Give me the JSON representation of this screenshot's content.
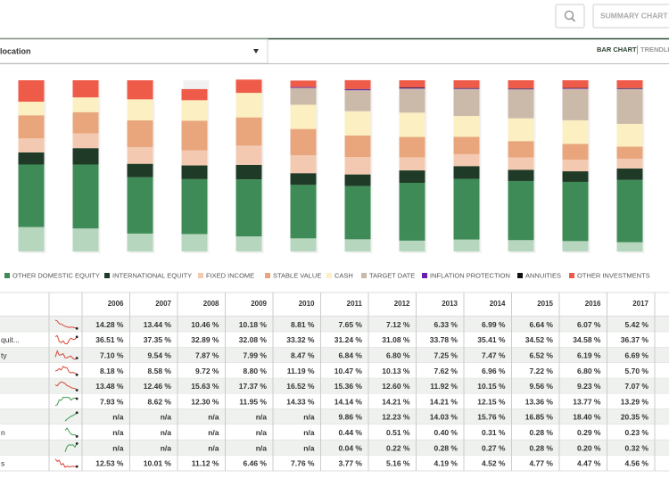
{
  "header": {
    "view_selector": "location",
    "views": [
      "BAR CHART",
      "TRENDLI"
    ],
    "summary_button": "SUMMARY CHART"
  },
  "chart_data": {
    "type": "stacked_bar",
    "categories": [
      "2006",
      "2007",
      "2008",
      "2009",
      "2010",
      "2011",
      "2012",
      "2013",
      "2014",
      "2015",
      "2016",
      "2017"
    ],
    "ylim": [
      0,
      100
    ],
    "series": [
      {
        "name": null,
        "row_label": null,
        "color": "#b6d6bd",
        "spark_color": "#d9463a",
        "values": [
          14.28,
          13.44,
          10.46,
          10.18,
          8.81,
          7.65,
          7.12,
          6.33,
          6.99,
          6.64,
          6.07,
          5.42
        ],
        "value_labels": [
          "14.28 %",
          "13.44 %",
          "10.46 %",
          "10.18 %",
          "8.81 %",
          "7.65 %",
          "7.12 %",
          "6.33 %",
          "6.99 %",
          "6.64 %",
          "6.07 %",
          "5.42 %"
        ]
      },
      {
        "name": "OTHER DOMESTIC EQUITY",
        "row_label": "quit...",
        "color": "#3f8b57",
        "spark_color": "#d9463a",
        "values": [
          36.51,
          37.35,
          32.89,
          32.08,
          33.32,
          31.24,
          31.08,
          33.78,
          35.41,
          34.52,
          34.58,
          36.37
        ],
        "value_labels": [
          "36.51 %",
          "37.35 %",
          "32.89 %",
          "32.08 %",
          "33.32 %",
          "31.24 %",
          "31.08 %",
          "33.78 %",
          "35.41 %",
          "34.52 %",
          "34.58 %",
          "36.37 %"
        ]
      },
      {
        "name": "INTERNATIONAL EQUITY",
        "row_label": "ty",
        "color": "#1f3b27",
        "spark_color": "#d9463a",
        "values": [
          7.1,
          9.54,
          7.87,
          7.99,
          8.47,
          6.84,
          6.8,
          7.25,
          7.47,
          6.52,
          6.19,
          6.69
        ],
        "value_labels": [
          "7.10 %",
          "9.54 %",
          "7.87 %",
          "7.99 %",
          "8.47 %",
          "6.84 %",
          "6.80 %",
          "7.25 %",
          "7.47 %",
          "6.52 %",
          "6.19 %",
          "6.69 %"
        ]
      },
      {
        "name": "FIXED INCOME",
        "row_label": null,
        "color": "#f3cab1",
        "spark_color": "#d9463a",
        "values": [
          8.18,
          8.58,
          9.72,
          8.8,
          11.19,
          10.47,
          10.13,
          7.62,
          6.96,
          7.22,
          6.8,
          5.7
        ],
        "value_labels": [
          "8.18 %",
          "8.58 %",
          "9.72 %",
          "8.80 %",
          "11.19 %",
          "10.47 %",
          "10.13 %",
          "7.62 %",
          "6.96 %",
          "7.22 %",
          "6.80 %",
          "5.70 %"
        ]
      },
      {
        "name": "STABLE VALUE",
        "row_label": null,
        "color": "#e9a67c",
        "spark_color": "#d9463a",
        "values": [
          13.48,
          12.46,
          15.63,
          17.37,
          16.52,
          15.36,
          12.6,
          11.92,
          10.15,
          9.56,
          9.23,
          7.07
        ],
        "value_labels": [
          "13.48 %",
          "12.46 %",
          "15.63 %",
          "17.37 %",
          "16.52 %",
          "15.36 %",
          "12.60 %",
          "11.92 %",
          "10.15 %",
          "9.56 %",
          "9.23 %",
          "7.07 %"
        ]
      },
      {
        "name": "CASH",
        "row_label": null,
        "color": "#fcefc1",
        "spark_color": "#3f9b4f",
        "values": [
          7.93,
          8.62,
          12.3,
          11.95,
          14.33,
          14.14,
          14.21,
          14.21,
          12.15,
          13.36,
          13.77,
          13.29
        ],
        "value_labels": [
          "7.93 %",
          "8.62 %",
          "12.30 %",
          "11.95 %",
          "14.33 %",
          "14.14 %",
          "14.21 %",
          "14.21 %",
          "12.15 %",
          "13.36 %",
          "13.77 %",
          "13.29 %"
        ]
      },
      {
        "name": "TARGET DATE",
        "row_label": null,
        "color": "#cbb9aa",
        "spark_color": "#3f9b4f",
        "values": [
          null,
          null,
          null,
          null,
          null,
          9.86,
          12.23,
          14.03,
          15.76,
          16.85,
          18.4,
          20.35
        ],
        "value_labels": [
          "n/a",
          "n/a",
          "n/a",
          "n/a",
          "n/a",
          "9.86 %",
          "12.23 %",
          "14.03 %",
          "15.76 %",
          "16.85 %",
          "18.40 %",
          "20.35 %"
        ]
      },
      {
        "name": "INFLATION PROTECTION",
        "row_label": "n",
        "color": "#6a1fb0",
        "spark_color": "#3f9b4f",
        "values": [
          null,
          null,
          null,
          null,
          null,
          0.44,
          0.51,
          0.4,
          0.31,
          0.28,
          0.29,
          0.23
        ],
        "value_labels": [
          "n/a",
          "n/a",
          "n/a",
          "n/a",
          "n/a",
          "0.44 %",
          "0.51 %",
          "0.40 %",
          "0.31 %",
          "0.28 %",
          "0.29 %",
          "0.23 %"
        ]
      },
      {
        "name": "ANNUITIES",
        "row_label": null,
        "color": "#111111",
        "spark_color": "#3f9b4f",
        "values": [
          null,
          null,
          null,
          null,
          null,
          0.04,
          0.22,
          0.28,
          0.27,
          0.28,
          0.2,
          0.32
        ],
        "value_labels": [
          "n/a",
          "n/a",
          "n/a",
          "n/a",
          "n/a",
          "0.04 %",
          "0.22 %",
          "0.28 %",
          "0.27 %",
          "0.28 %",
          "0.20 %",
          "0.32 %"
        ]
      },
      {
        "name": "OTHER INVESTMENTS",
        "row_label": "s",
        "color": "#ee5b49",
        "spark_color": "#d9463a",
        "values": [
          12.53,
          10.01,
          11.12,
          6.46,
          7.76,
          3.77,
          5.16,
          4.19,
          4.52,
          4.77,
          4.47,
          4.56
        ],
        "value_labels": [
          "12.53 %",
          "10.01 %",
          "11.12 %",
          "6.46 %",
          "7.76 %",
          "3.77 %",
          "5.16 %",
          "4.19 %",
          "4.52 %",
          "4.77 %",
          "4.47 %",
          "4.56 %"
        ]
      }
    ]
  }
}
